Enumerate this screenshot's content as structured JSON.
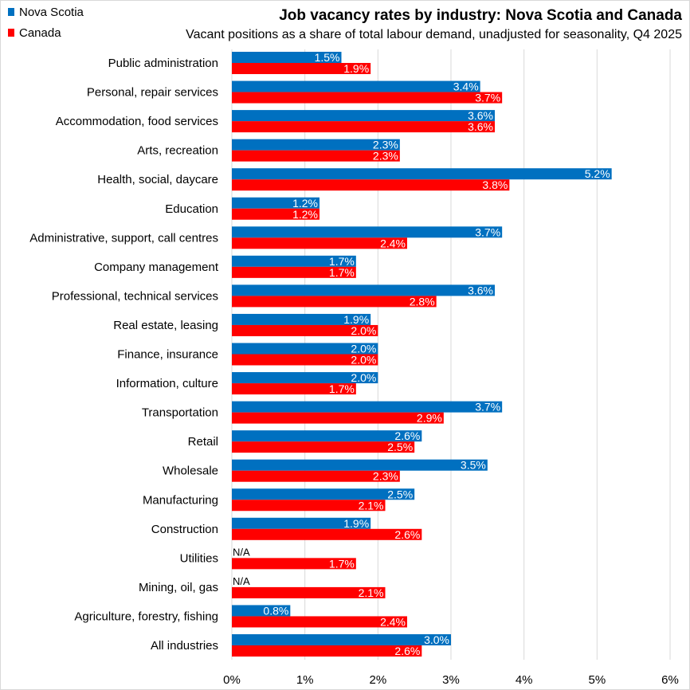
{
  "chart_data": {
    "type": "bar",
    "orientation": "horizontal",
    "title": "Job vacancy rates by industry: Nova Scotia and Canada",
    "subtitle": "Vacant positions as a share of total labour demand, unadjusted for seasonality, Q4 2025",
    "categories": [
      "Public administration",
      "Personal, repair services",
      "Accommodation, food services",
      "Arts, recreation",
      "Health, social, daycare",
      "Education",
      "Administrative, support, call centres",
      "Company management",
      "Professional, technical services",
      "Real estate, leasing",
      "Finance, insurance",
      "Information, culture",
      "Transportation",
      "Retail",
      "Wholesale",
      "Manufacturing",
      "Construction",
      "Utilities",
      "Mining, oil, gas",
      "Agriculture, forestry, fishing",
      "All industries"
    ],
    "series": [
      {
        "name": "Nova Scotia",
        "color": "#0070C0",
        "values": [
          1.5,
          3.4,
          3.6,
          2.3,
          5.2,
          1.2,
          3.7,
          1.7,
          3.6,
          1.9,
          2.0,
          2.0,
          3.7,
          2.6,
          3.5,
          2.5,
          1.9,
          null,
          null,
          0.8,
          3.0
        ]
      },
      {
        "name": "Canada",
        "color": "#FF0000",
        "values": [
          1.9,
          3.7,
          3.6,
          2.3,
          3.8,
          1.2,
          2.4,
          1.7,
          2.8,
          2.0,
          2.0,
          1.7,
          2.9,
          2.5,
          2.3,
          2.1,
          2.6,
          1.7,
          2.1,
          2.4,
          2.6
        ]
      }
    ],
    "missing_label": "N/A",
    "xlim": [
      0,
      6
    ],
    "xticks": [
      "0%",
      "1%",
      "2%",
      "3%",
      "4%",
      "5%",
      "6%"
    ],
    "grid": true,
    "legend": "top-left",
    "value_format": "percent, 1 decimal"
  }
}
